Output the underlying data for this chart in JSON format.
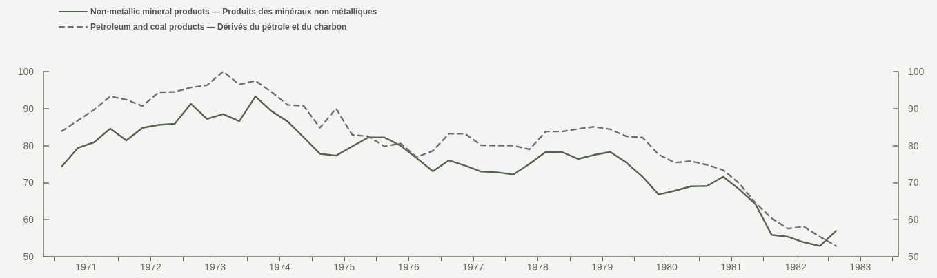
{
  "chart_data": {
    "type": "line",
    "x": [
      1971.125,
      1971.375,
      1971.625,
      1971.875,
      1972.125,
      1972.375,
      1972.625,
      1972.875,
      1973.125,
      1973.375,
      1973.625,
      1973.875,
      1974.125,
      1974.375,
      1974.625,
      1974.875,
      1975.125,
      1975.375,
      1975.625,
      1975.875,
      1976.125,
      1976.375,
      1976.625,
      1976.875,
      1977.125,
      1977.375,
      1977.625,
      1977.875,
      1978.125,
      1978.375,
      1978.625,
      1978.875,
      1979.125,
      1979.375,
      1979.625,
      1979.875,
      1980.125,
      1980.375,
      1980.625,
      1980.875,
      1981.125,
      1981.375,
      1981.625,
      1981.875,
      1982.125,
      1982.375,
      1982.625,
      1982.875,
      1983.125
    ],
    "series": [
      {
        "name": "Non-metallic mineral products — Produits des minéraux non métalliques",
        "color": "#56634f",
        "line_style": "solid",
        "values": [
          74.4,
          79.4,
          80.9,
          84.6,
          81.4,
          84.8,
          85.6,
          85.9,
          91.3,
          87.2,
          88.5,
          86.6,
          93.3,
          89.3,
          86.5,
          82.2,
          77.8,
          77.3,
          79.8,
          82.2,
          82.2,
          80.0,
          76.6,
          73.1,
          76.0,
          74.6,
          73.0,
          72.8,
          72.2,
          75.1,
          78.3,
          78.3,
          76.4,
          77.5,
          78.3,
          75.4,
          71.6,
          66.8,
          67.8,
          69.0,
          69.1,
          71.6,
          68.2,
          64.2,
          55.9,
          55.4,
          53.9,
          52.9,
          57.0
        ]
      },
      {
        "name": "Petroleum and coal products — Dérivés du pétrole et du charbon",
        "color": "#707070",
        "line_style": "dashed",
        "values": [
          83.9,
          86.8,
          89.7,
          93.3,
          92.4,
          90.7,
          94.4,
          94.5,
          95.7,
          96.3,
          100,
          96.5,
          97.5,
          94.5,
          91.0,
          90.7,
          84.8,
          90.0,
          82.9,
          82.5,
          79.8,
          80.6,
          76.9,
          78.6,
          83.2,
          83.2,
          80.1,
          80.0,
          80.0,
          79.0,
          83.8,
          83.8,
          84.5,
          85.1,
          84.4,
          82.5,
          82.2,
          77.6,
          75.4,
          75.8,
          74.8,
          73.4,
          69.8,
          64.5,
          60.4,
          57.6,
          58.1,
          55.4,
          52.9
        ]
      }
    ],
    "xlim": [
      1970.84,
      1984.09
    ],
    "xticks": [
      {
        "value": 1971,
        "label": null
      },
      {
        "value": 1971.5,
        "label": "1971"
      },
      {
        "value": 1972,
        "label": null
      },
      {
        "value": 1972.5,
        "label": "1972"
      },
      {
        "value": 1973,
        "label": null
      },
      {
        "value": 1973.5,
        "label": "1973"
      },
      {
        "value": 1974,
        "label": null
      },
      {
        "value": 1974.5,
        "label": "1974"
      },
      {
        "value": 1975,
        "label": null
      },
      {
        "value": 1975.5,
        "label": "1975"
      },
      {
        "value": 1976,
        "label": null
      },
      {
        "value": 1976.5,
        "label": "1976"
      },
      {
        "value": 1977,
        "label": null
      },
      {
        "value": 1977.5,
        "label": "1977"
      },
      {
        "value": 1978,
        "label": null
      },
      {
        "value": 1978.5,
        "label": "1978"
      },
      {
        "value": 1979,
        "label": null
      },
      {
        "value": 1979.5,
        "label": "1979"
      },
      {
        "value": 1980,
        "label": null
      },
      {
        "value": 1980.5,
        "label": "1980"
      },
      {
        "value": 1981,
        "label": null
      },
      {
        "value": 1981.5,
        "label": "1981"
      },
      {
        "value": 1982,
        "label": null
      },
      {
        "value": 1982.5,
        "label": "1982"
      },
      {
        "value": 1983,
        "label": null
      },
      {
        "value": 1983.5,
        "label": "1983"
      },
      {
        "value": 1984,
        "label": null
      }
    ],
    "ylim": [
      50,
      100
    ],
    "yticks": [
      50,
      60,
      70,
      80,
      90,
      100
    ],
    "y2lim": [
      50,
      100
    ],
    "y2ticks": [
      50,
      60,
      70,
      80,
      90,
      100
    ],
    "grid": false,
    "legend": "top left",
    "marker": "none"
  }
}
